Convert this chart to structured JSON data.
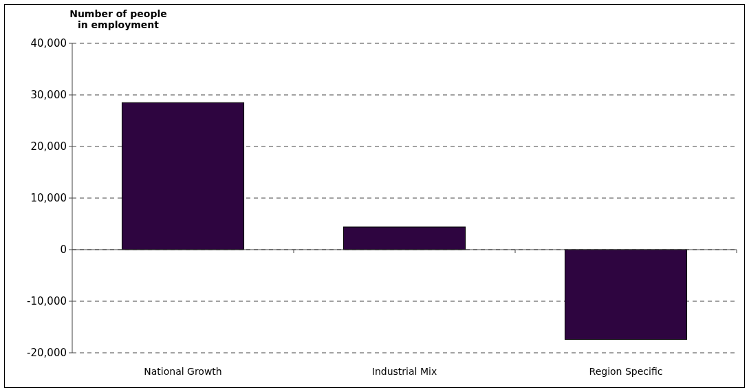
{
  "chart_data": {
    "type": "bar",
    "title": "Number of people\nin employment",
    "categories": [
      "National Growth",
      "Industrial Mix",
      "Region Specific"
    ],
    "values": [
      28500,
      4400,
      -17400
    ],
    "color": "#2e0540",
    "ylim": [
      -20000,
      40000
    ],
    "yticks": [
      {
        "value": -20000,
        "label": "-20,000"
      },
      {
        "value": -10000,
        "label": "-10,000"
      },
      0,
      {
        "value": 10000,
        "label": "10,000"
      },
      {
        "value": 20000,
        "label": "20,000"
      },
      {
        "value": 30000,
        "label": "30,000"
      },
      {
        "value": 40000,
        "label": "40,000"
      }
    ],
    "grid": "y"
  }
}
